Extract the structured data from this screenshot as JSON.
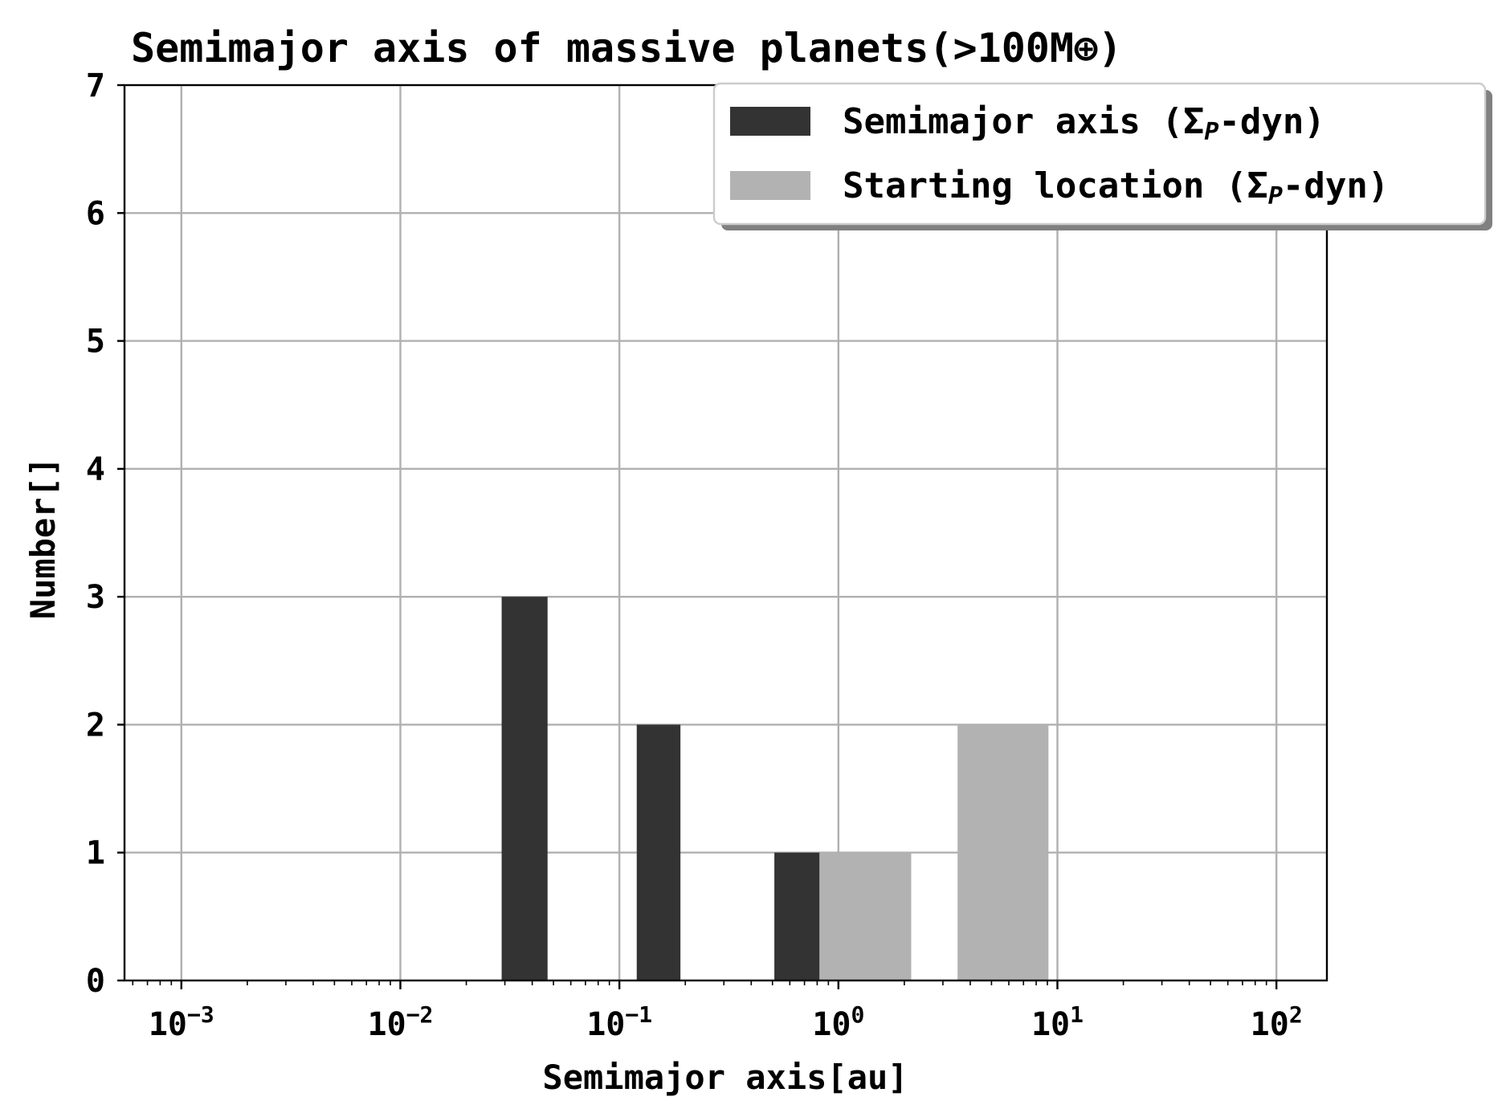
{
  "chart_data": {
    "type": "bar",
    "title": "Semimajor axis of massive planets(>100M⊕)",
    "xlabel": "Semimajor axis[au]",
    "ylabel": "Number[]",
    "xscale": "log",
    "xlim": [
      0.00055,
      170
    ],
    "ylim": [
      0,
      7
    ],
    "yticks": [
      "0",
      "1",
      "2",
      "3",
      "4",
      "5",
      "6",
      "7"
    ],
    "xticks": [
      {
        "base": "10",
        "exp": "−3",
        "value": 0.001
      },
      {
        "base": "10",
        "exp": "−2",
        "value": 0.01
      },
      {
        "base": "10",
        "exp": "−1",
        "value": 0.1
      },
      {
        "base": "10",
        "exp": "0",
        "value": 1
      },
      {
        "base": "10",
        "exp": "1",
        "value": 10
      },
      {
        "base": "10",
        "exp": "2",
        "value": 100
      }
    ],
    "grid": true,
    "legend_position": "top-right",
    "series": [
      {
        "name": "Semimajor axis    (Σ",
        "name_sub": "P",
        "name_suffix": "-dyn)",
        "color": "#333333",
        "bins": [
          {
            "x0": 0.029,
            "x1": 0.047,
            "value": 3
          },
          {
            "x0": 0.12,
            "x1": 0.19,
            "value": 2
          },
          {
            "x0": 0.51,
            "x1": 0.82,
            "value": 1
          }
        ]
      },
      {
        "name": "Starting location (Σ",
        "name_sub": "P",
        "name_suffix": "-dyn)",
        "color": "#b2b2b2",
        "bins": [
          {
            "x0": 0.82,
            "x1": 2.15,
            "value": 1
          },
          {
            "x0": 3.5,
            "x1": 9.1,
            "value": 2
          }
        ]
      }
    ]
  }
}
